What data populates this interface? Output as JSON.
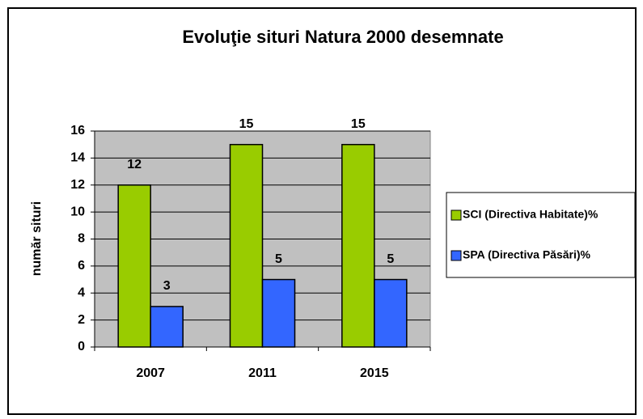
{
  "chart_data": {
    "type": "bar",
    "title": "Evoluţie situri Natura 2000 desemnate",
    "y_label": "număr situri",
    "categories": [
      "2007",
      "2011",
      "2015"
    ],
    "series": [
      {
        "name": "SCI (Directiva Habitate)%",
        "color": "#99cc00",
        "values": [
          12,
          15,
          15
        ]
      },
      {
        "name": "SPA (Directiva Păsări)%",
        "color": "#3366ff",
        "values": [
          3,
          5,
          5
        ]
      }
    ],
    "ylim": [
      0,
      16
    ],
    "yticks": [
      0,
      2,
      4,
      6,
      8,
      10,
      12,
      14,
      16
    ],
    "grid": true,
    "legend": "right",
    "plot_background": "#c0c0c0"
  }
}
